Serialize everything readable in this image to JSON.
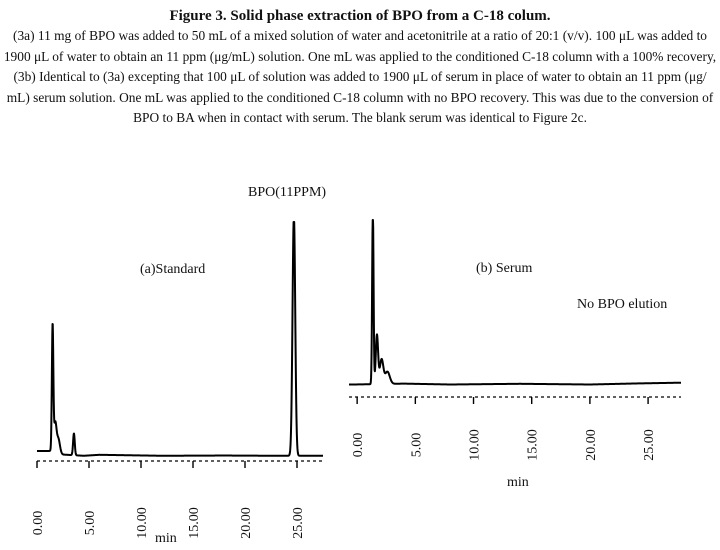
{
  "caption": {
    "title": "Figure 3. Solid phase extraction of BPO from a C-18 colum.",
    "lines": [
      "(3a) 11 mg of BPO was added to 50 mL of a mixed solution of water and acetonitrile at a ratio of 20:1 (v/v). 100 μL was added to",
      "1900 μL of water to obtain an 11 ppm (μg/mL) solution. One mL was applied to the conditioned C-18 column with a 100% recovery,",
      "(3b) Identical to (3a) excepting that 100 μL of solution was added to 1900 μL of serum in place of water to obtain an 11 ppm (μg/",
      "mL) serum solution. One mL was applied to the conditioned C-18 column with no BPO recovery. This was due to the conversion of",
      "BPO to BA when in contact with serum. The blank serum was identical to Figure 2c."
    ]
  },
  "chart_data": [
    {
      "type": "line",
      "panel_label": "(a)Standard",
      "peak_label": "BPO(11PPM)",
      "xlabel": "min",
      "xlim": [
        0,
        27.5
      ],
      "ylim": [
        0,
        100
      ],
      "x_ticks": [
        "0.00",
        "5.00",
        "10.00",
        "15.00",
        "20.00",
        "25.00"
      ],
      "x_tick_values": [
        0,
        5,
        10,
        15,
        20,
        25
      ],
      "baseline": 3,
      "peaks": [
        {
          "x": 1.5,
          "height": 52,
          "width": 0.07
        },
        {
          "x": 1.75,
          "height": 12,
          "width": 0.12
        },
        {
          "x": 2.05,
          "height": 6,
          "width": 0.15
        },
        {
          "x": 3.55,
          "height": 9,
          "width": 0.08
        },
        {
          "x": 24.7,
          "height": 100,
          "width": 0.13
        }
      ],
      "noise": [
        {
          "x": 1.3,
          "y": 5
        },
        {
          "x": 2.5,
          "y": 3.5
        },
        {
          "x": 4.5,
          "y": 3
        },
        {
          "x": 6,
          "y": 3.4
        },
        {
          "x": 12,
          "y": 3
        },
        {
          "x": 18,
          "y": 3.1
        },
        {
          "x": 23,
          "y": 3
        },
        {
          "x": 26.2,
          "y": 3
        },
        {
          "x": 27.2,
          "y": 3
        }
      ]
    },
    {
      "type": "line",
      "panel_label": "(b) Serum",
      "annotation": "No  BPO elution",
      "xlabel": "min",
      "xlim": [
        -0.7,
        28
      ],
      "ylim": [
        0,
        100
      ],
      "x_ticks": [
        "0.00",
        "5.00",
        "10.00",
        "15.00",
        "20.00",
        "25.00"
      ],
      "x_tick_values": [
        0,
        5,
        10,
        15,
        20,
        25
      ],
      "baseline": 6,
      "peaks": [
        {
          "x": 1.35,
          "height": 100,
          "width": 0.06
        },
        {
          "x": 1.7,
          "height": 28,
          "width": 0.1
        },
        {
          "x": 2.1,
          "height": 14,
          "width": 0.15
        },
        {
          "x": 2.6,
          "height": 7,
          "width": 0.2
        }
      ],
      "noise": [
        {
          "x": -0.3,
          "y": 6
        },
        {
          "x": 4,
          "y": 6.5
        },
        {
          "x": 8,
          "y": 6
        },
        {
          "x": 14,
          "y": 6.4
        },
        {
          "x": 20,
          "y": 6
        },
        {
          "x": 24,
          "y": 6.6
        },
        {
          "x": 27.5,
          "y": 7
        }
      ]
    }
  ]
}
